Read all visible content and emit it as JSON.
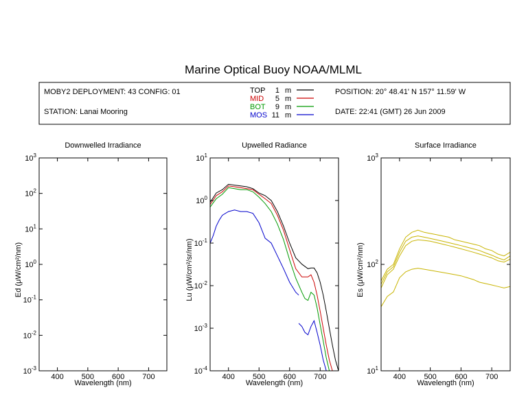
{
  "title": "Marine Optical Buoy NOAA/MLML",
  "info": {
    "deployment": "MOBY2 DEPLOYMENT: 43 CONFIG: 01",
    "station": "STATION: Lanai Mooring",
    "position": "POSITION: 20° 48.41' N   157° 11.59' W",
    "date": "DATE: 22:41 (GMT) 26 Jun 2009"
  },
  "legend": [
    {
      "name": "TOP",
      "depth": "1",
      "unit": "m",
      "color": "#000000"
    },
    {
      "name": "MID",
      "depth": "5",
      "unit": "m",
      "color": "#cc0000"
    },
    {
      "name": "BOT",
      "depth": "9",
      "unit": "m",
      "color": "#009900"
    },
    {
      "name": "MOS",
      "depth": "11",
      "unit": "m",
      "color": "#0000cc"
    }
  ],
  "chart_data": [
    {
      "type": "line",
      "title": "Downwelled Irradiance",
      "xlabel": "Wavelength (nm)",
      "ylabel_main": "Ed",
      "ylabel_units": "(μW/cm²/nm)",
      "xlim": [
        340,
        760
      ],
      "ylim": [
        0.001,
        1000
      ],
      "yscale": "log",
      "xticks": [
        400,
        500,
        600,
        700
      ],
      "yticks": [
        -3,
        -2,
        -1,
        0,
        1,
        2,
        3
      ],
      "series": []
    },
    {
      "type": "line",
      "title": "Upwelled Radiance",
      "xlabel": "Wavelength (nm)",
      "ylabel_main": "Lu",
      "ylabel_units": "(μW/cm²/sr/nm)",
      "xlim": [
        340,
        760
      ],
      "ylim": [
        0.0001,
        10
      ],
      "yscale": "log",
      "xticks": [
        400,
        500,
        600,
        700
      ],
      "yticks": [
        -4,
        -3,
        -2,
        -1,
        0,
        1
      ],
      "series": [
        {
          "color": "#000000",
          "x": [
            340,
            360,
            380,
            400,
            420,
            440,
            460,
            480,
            500,
            520,
            540,
            560,
            580,
            600,
            620,
            640,
            660,
            670,
            680,
            690,
            700,
            710,
            720,
            730,
            740,
            750,
            760
          ],
          "y": [
            0.9,
            1.5,
            1.8,
            2.4,
            2.3,
            2.2,
            2.1,
            1.9,
            1.5,
            1.3,
            1.0,
            0.55,
            0.25,
            0.1,
            0.045,
            0.032,
            0.025,
            0.026,
            0.026,
            0.02,
            0.012,
            0.006,
            0.0025,
            0.001,
            0.0004,
            0.00018,
            0.0001
          ]
        },
        {
          "color": "#cc0000",
          "x": [
            340,
            360,
            380,
            400,
            420,
            440,
            460,
            480,
            500,
            520,
            540,
            560,
            580,
            600,
            620,
            640,
            660,
            670,
            680,
            690,
            700,
            710,
            720,
            730,
            740,
            750,
            760
          ],
          "y": [
            0.8,
            1.3,
            1.6,
            2.2,
            2.1,
            2.0,
            1.9,
            1.8,
            1.4,
            1.1,
            0.85,
            0.45,
            0.2,
            0.07,
            0.025,
            0.016,
            0.016,
            0.018,
            0.012,
            0.006,
            0.0025,
            0.001,
            0.0004,
            0.00018,
            0.0001,
            0.0001,
            0.0001
          ]
        },
        {
          "color": "#009900",
          "x": [
            340,
            360,
            380,
            400,
            420,
            440,
            460,
            480,
            500,
            520,
            540,
            560,
            580,
            600,
            620,
            640,
            650,
            660,
            670,
            680,
            690,
            700,
            710,
            720,
            730,
            740,
            750,
            760
          ],
          "y": [
            0.7,
            1.1,
            1.4,
            2.0,
            1.9,
            1.8,
            1.8,
            1.6,
            1.2,
            0.85,
            0.55,
            0.28,
            0.12,
            0.04,
            0.015,
            0.007,
            0.005,
            0.0045,
            0.007,
            0.006,
            0.003,
            0.0012,
            0.0005,
            0.0002,
            0.0001,
            0.0001,
            0.0001,
            0.0001
          ]
        },
        {
          "color": "#0000cc",
          "x": [
            340,
            350,
            360,
            370,
            380,
            400,
            420,
            440,
            460,
            480,
            500,
            520,
            540,
            560,
            580,
            600,
            620,
            630
          ],
          "y": [
            0.1,
            0.15,
            0.25,
            0.35,
            0.45,
            0.55,
            0.6,
            0.55,
            0.55,
            0.5,
            0.3,
            0.13,
            0.1,
            0.05,
            0.025,
            0.012,
            0.007,
            0.006
          ]
        },
        {
          "color": "#0000cc",
          "x": [
            630,
            640,
            650,
            660,
            670,
            680,
            690,
            700,
            710,
            720,
            730,
            740,
            750
          ],
          "y": [
            0.0013,
            0.0011,
            0.0008,
            0.0007,
            0.0011,
            0.0015,
            0.0008,
            0.0004,
            0.00018,
            0.0001,
            0.0001,
            0.0001,
            0.0001
          ]
        }
      ]
    },
    {
      "type": "line",
      "title": "Surface Irradiance",
      "xlabel": "Wavelength (nm)",
      "ylabel_main": "Es",
      "ylabel_units": "(μW/cm²/nm)",
      "xlim": [
        340,
        760
      ],
      "ylim": [
        10,
        1000
      ],
      "yscale": "log",
      "xticks": [
        400,
        500,
        600,
        700
      ],
      "yticks": [
        1,
        2,
        3
      ],
      "series": [
        {
          "color": "#c8b400",
          "x": [
            340,
            360,
            380,
            400,
            420,
            440,
            460,
            480,
            500,
            520,
            540,
            560,
            580,
            600,
            620,
            640,
            660,
            680,
            700,
            720,
            740,
            760
          ],
          "y": [
            70,
            90,
            100,
            140,
            180,
            200,
            210,
            200,
            195,
            190,
            185,
            180,
            170,
            165,
            160,
            155,
            150,
            140,
            135,
            125,
            120,
            130
          ]
        },
        {
          "color": "#c8b400",
          "x": [
            340,
            360,
            380,
            400,
            420,
            440,
            460,
            480,
            500,
            520,
            540,
            560,
            580,
            600,
            620,
            640,
            660,
            680,
            700,
            720,
            740,
            760
          ],
          "y": [
            65,
            85,
            95,
            130,
            165,
            180,
            185,
            180,
            175,
            170,
            165,
            160,
            155,
            150,
            145,
            140,
            135,
            128,
            122,
            115,
            110,
            120
          ]
        },
        {
          "color": "#c8b400",
          "x": [
            340,
            360,
            380,
            400,
            420,
            440,
            460,
            480,
            500,
            520,
            540,
            560,
            580,
            600,
            620,
            640,
            660,
            680,
            700,
            720,
            740,
            760
          ],
          "y": [
            60,
            80,
            90,
            120,
            150,
            165,
            170,
            168,
            165,
            160,
            155,
            150,
            145,
            140,
            135,
            130,
            125,
            120,
            115,
            108,
            105,
            112
          ]
        },
        {
          "color": "#c8b400",
          "x": [
            340,
            360,
            380,
            400,
            420,
            440,
            460,
            480,
            500,
            520,
            540,
            560,
            580,
            600,
            620,
            640,
            660,
            680,
            700,
            720,
            740,
            760
          ],
          "y": [
            40,
            50,
            55,
            75,
            85,
            90,
            92,
            90,
            88,
            86,
            84,
            82,
            80,
            78,
            75,
            72,
            68,
            66,
            64,
            62,
            60,
            62
          ]
        }
      ]
    }
  ]
}
